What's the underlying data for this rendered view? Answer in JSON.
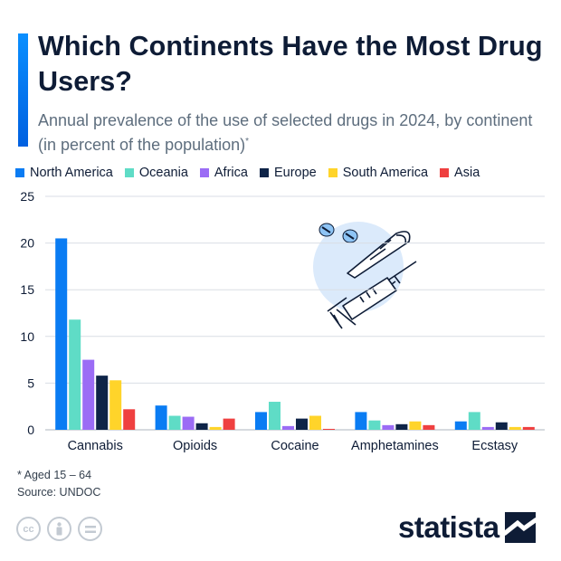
{
  "header": {
    "title": "Which Continents Have the Most Drug Users?",
    "subtitle": "Annual prevalence of the use of selected drugs in 2024, by continent (in percent of the population)",
    "subtitle_marker": "*"
  },
  "footer": {
    "note": "* Aged 15 – 64",
    "source": "Source: UNDOC",
    "brand": "statista"
  },
  "colors": {
    "accent": "#0a7cf3",
    "text": "#0e1c36",
    "grid": "#d9dee4"
  },
  "chart_data": {
    "type": "bar",
    "categories": [
      "Cannabis",
      "Opioids",
      "Cocaine",
      "Amphetamines",
      "Ecstasy"
    ],
    "series": [
      {
        "name": "North America",
        "color": "#0a7cf3",
        "values": [
          20.5,
          2.6,
          1.9,
          1.9,
          0.9
        ]
      },
      {
        "name": "Oceania",
        "color": "#5fdcc6",
        "values": [
          11.8,
          1.5,
          3.0,
          1.0,
          1.9
        ]
      },
      {
        "name": "Africa",
        "color": "#9b6cf5",
        "values": [
          7.5,
          1.4,
          0.4,
          0.5,
          0.3
        ]
      },
      {
        "name": "Europe",
        "color": "#0e2448",
        "values": [
          5.8,
          0.7,
          1.2,
          0.6,
          0.8
        ]
      },
      {
        "name": "South America",
        "color": "#ffd42a",
        "values": [
          5.3,
          0.3,
          1.5,
          0.9,
          0.3
        ]
      },
      {
        "name": "Asia",
        "color": "#ef4040",
        "values": [
          2.2,
          1.2,
          0.1,
          0.5,
          0.3
        ]
      }
    ],
    "yticks": [
      0,
      5,
      10,
      15,
      20,
      25
    ],
    "ylim": [
      0,
      25
    ],
    "grid": true,
    "legend_position": "top"
  },
  "illustration": {
    "icons": [
      "pill-icon",
      "joint-icon",
      "syringe-icon"
    ]
  },
  "license_icons": [
    "cc-icon",
    "attribution-icon",
    "no-derivatives-icon"
  ]
}
